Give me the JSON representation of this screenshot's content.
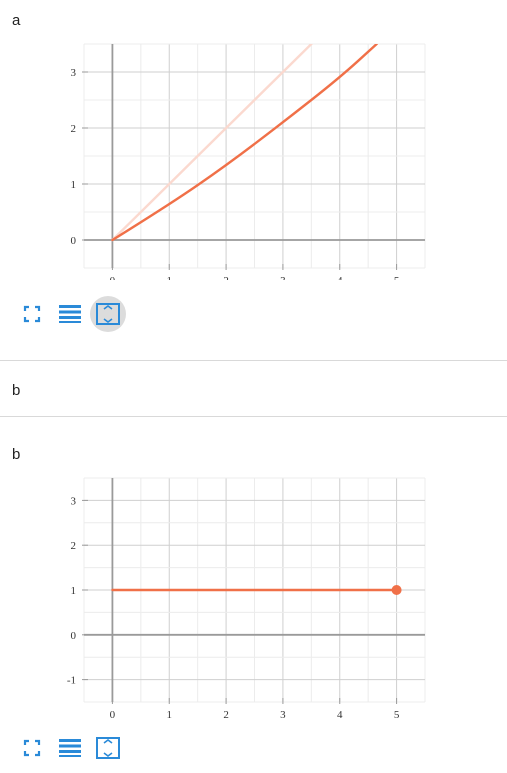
{
  "panels": [
    {
      "label": "a",
      "chart_data": {
        "type": "line",
        "title": "",
        "xlabel": "",
        "ylabel": "",
        "xlim": [
          -0.5,
          5.5
        ],
        "ylim": [
          -0.5,
          3.5
        ],
        "x_ticks": [
          "0",
          "1",
          "2",
          "3",
          "4",
          "5"
        ],
        "y_ticks": [
          "0",
          "1",
          "2",
          "3"
        ],
        "grid": true,
        "series": [
          {
            "color": "#fbd9cf",
            "x": [
              0,
              1,
              2,
              3,
              3.55
            ],
            "y": [
              0,
              1,
              2,
              3,
              3.55
            ]
          },
          {
            "color": "#f07048",
            "x": [
              0,
              1,
              2,
              3,
              4,
              4.65
            ],
            "y": [
              0,
              0.63,
              1.33,
              2.1,
              2.9,
              3.5
            ]
          }
        ]
      },
      "toolbar": {
        "fullscreen_icon": "fullscreen-icon",
        "menu_icon": "menu-icon",
        "fit_icon": "fit-view-icon",
        "active": "fit"
      }
    },
    {
      "label": "b",
      "chart_data": {
        "type": "line",
        "title": "",
        "xlabel": "",
        "ylabel": "",
        "xlim": [
          -0.5,
          5.5
        ],
        "ylim": [
          -1.5,
          3.5
        ],
        "x_ticks": [
          "0",
          "1",
          "2",
          "3",
          "4",
          "5"
        ],
        "y_ticks": [
          "-1",
          "0",
          "1",
          "2",
          "3"
        ],
        "grid": true,
        "series": [
          {
            "color": "#f07048",
            "x": [
              0,
              5
            ],
            "y": [
              1,
              1
            ],
            "endpoint_marker": true
          }
        ]
      },
      "toolbar": {
        "fullscreen_icon": "fullscreen-icon",
        "menu_icon": "menu-icon",
        "fit_icon": "fit-view-icon",
        "active": ""
      }
    }
  ],
  "section_label": "b"
}
